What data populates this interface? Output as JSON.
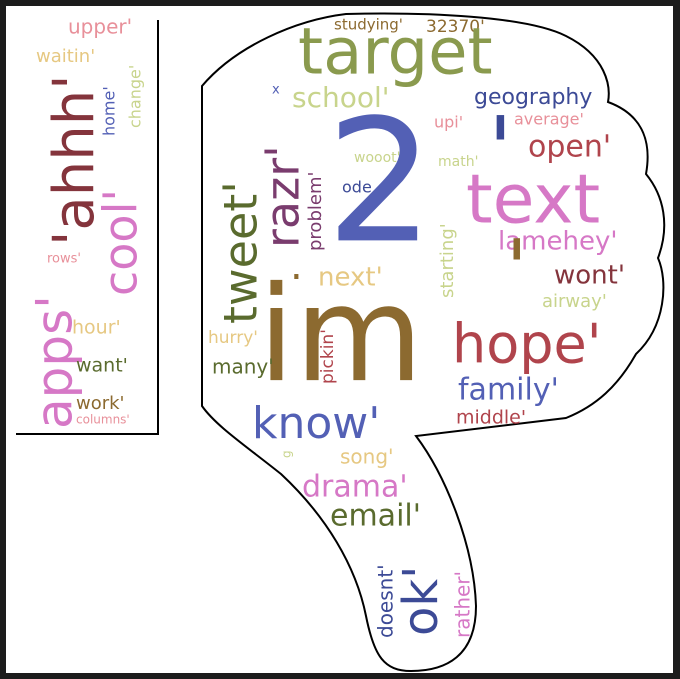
{
  "words": {
    "w_upper": "upper'",
    "w_ahhh": "'ahhh'",
    "w_waitin": "waitin'",
    "w_cool": "cool'",
    "w_home": "home'",
    "w_change": "change'",
    "w_apps": "apps'",
    "w_rows": "rows'",
    "w_hour": "hour'",
    "w_want": "want'",
    "w_work": "work'",
    "w_columns": "columns'",
    "w_studying": "studying'",
    "w_num": "32370'",
    "w_target": "target",
    "w_school": "school'",
    "w_x": "x",
    "w_geography": "geography",
    "w_upi": "upi'",
    "w_average": "average'",
    "w_tweet": "tweet'",
    "w_razr": "razr'",
    "w_problem": "problem'",
    "w_wooot": "wooot'",
    "w_ode": "ode",
    "w_two": "2",
    "w_mark": "'",
    "w_open": "open'",
    "w_math": "math'",
    "w_text": "text",
    "w_starting": "starting'",
    "w_lamehey": "lamehey'",
    "w_next": "next'",
    "w_wont": "wont'",
    "w_airway": "airway'",
    "w_im": "im",
    "w_dot": ".",
    "w_hurry": "hurry'",
    "w_pickin": "pickin'",
    "w_many": "many'",
    "w_hope": "hope'",
    "w_family": "family'",
    "w_know": "know'",
    "w_middle": "middle'",
    "w_g": "g",
    "w_song": "song'",
    "w_drama": "drama'",
    "w_email": "email'",
    "w_doesnt": "doesnt'",
    "w_ok": "ok'",
    "w_rather": "rather'"
  },
  "colors": {
    "olive": "#8a9a4e",
    "navy": "#3c4a96",
    "blue": "#5360b5",
    "pink": "#d678c6",
    "red": "#b0444c",
    "brown": "#8c6a30",
    "tan": "#e6c882",
    "sage": "#c8d48c",
    "darkgreen": "#5a6b2e",
    "rose": "#e8909a",
    "plum": "#7a3c6e",
    "darkred": "#84343c"
  }
}
